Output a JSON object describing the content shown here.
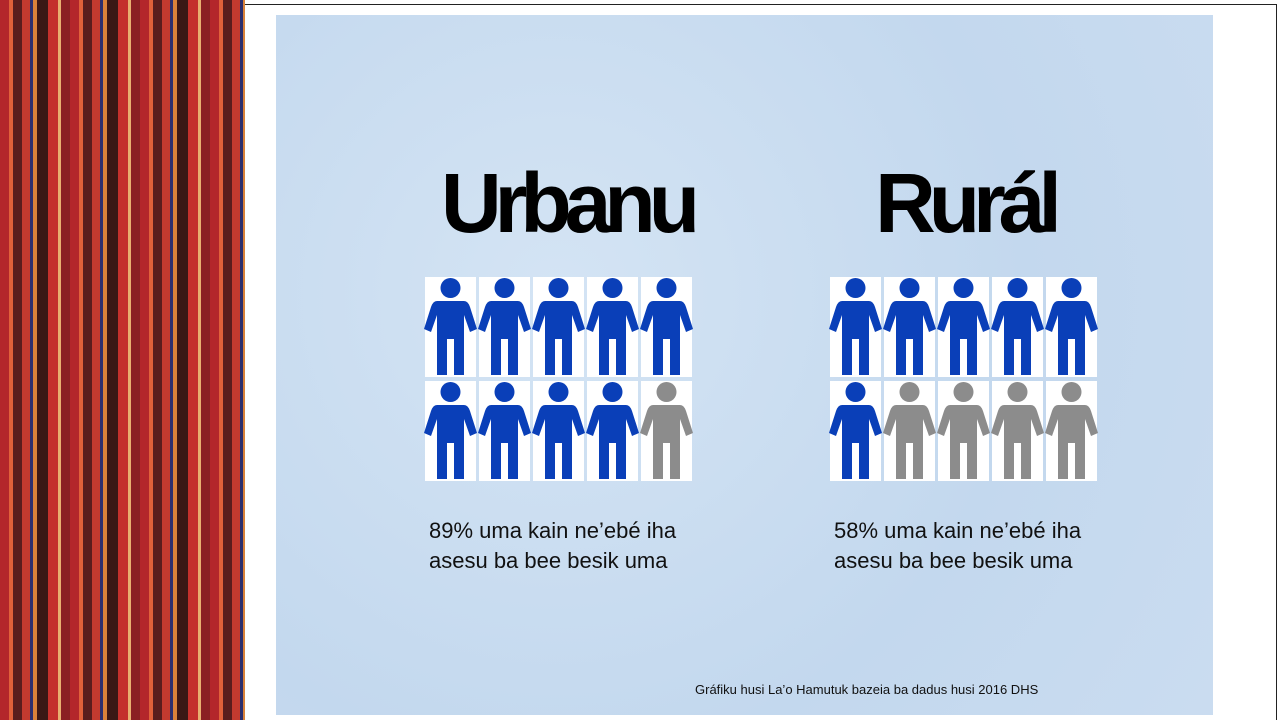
{
  "panels": [
    {
      "title": "Urbanu",
      "icons": {
        "filled": 9,
        "total": 10
      },
      "text": [
        "89% uma kain ne’ebé iha",
        "asesu ba bee besik uma"
      ]
    },
    {
      "title": "Rurál",
      "icons": {
        "filled": 6,
        "total": 10
      },
      "text": [
        "58% uma kain ne’ebé iha",
        "asesu ba bee besik uma"
      ]
    }
  ],
  "footer": "Gráfiku husi La’o Hamutuk bazeia ba dadus husi 2016 DHS",
  "colors": {
    "filled": "#0a3fb8",
    "empty": "#8c8c8c"
  }
}
